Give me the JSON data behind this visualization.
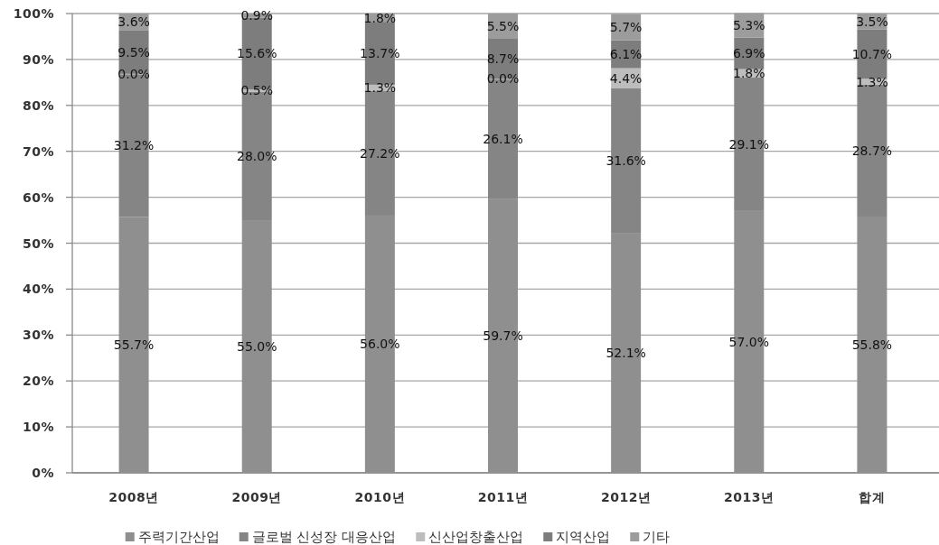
{
  "chart_data": {
    "type": "bar",
    "stacked": true,
    "categories": [
      "2008년",
      "2009년",
      "2010년",
      "2011년",
      "2012년",
      "2013년",
      "합계"
    ],
    "series": [
      {
        "name": "주력기간산업",
        "color": "#8f8f8f",
        "values": [
          55.7,
          55.0,
          56.0,
          59.7,
          52.1,
          57.0,
          55.8
        ],
        "value_labels": [
          "55.7%",
          "55.0%",
          "56.0%",
          "59.7%",
          "52.1%",
          "57.0%",
          "55.8%"
        ]
      },
      {
        "name": "글로벌 신성장 대응산업",
        "color": "#858585",
        "values": [
          31.2,
          28.0,
          27.2,
          26.1,
          31.6,
          29.1,
          28.7
        ],
        "value_labels": [
          "31.2%",
          "28.0%",
          "27.2%",
          "26.1%",
          "31.6%",
          "29.1%",
          "28.7%"
        ]
      },
      {
        "name": "신산업창출산업",
        "color": "#bdbdbd",
        "values": [
          0.0,
          0.5,
          1.3,
          0.0,
          4.4,
          1.8,
          1.3
        ],
        "value_labels": [
          "0.0%",
          "0.5%",
          "1.3%",
          "0.0%",
          "4.4%",
          "1.8%",
          "1.3%"
        ]
      },
      {
        "name": "지역산업",
        "color": "#7d7d7d",
        "values": [
          9.5,
          15.6,
          13.7,
          8.7,
          6.1,
          6.9,
          10.7
        ],
        "value_labels": [
          "9.5%",
          "15.6%",
          "13.7%",
          "8.7%",
          "6.1%",
          "6.9%",
          "10.7%"
        ]
      },
      {
        "name": "기타",
        "color": "#9c9c9c",
        "values": [
          3.6,
          0.9,
          1.8,
          5.5,
          5.7,
          5.3,
          3.5
        ],
        "value_labels": [
          "3.6%",
          "0.9%",
          "1.8%",
          "5.5%",
          "5.7%",
          "5.3%",
          "3.5%"
        ]
      }
    ],
    "ylim": [
      0,
      100
    ],
    "yticks": [
      {
        "value": 0,
        "label": "0%"
      },
      {
        "value": 10,
        "label": "10%"
      },
      {
        "value": 20,
        "label": "20%"
      },
      {
        "value": 30,
        "label": "30%"
      },
      {
        "value": 40,
        "label": "40%"
      },
      {
        "value": 50,
        "label": "50%"
      },
      {
        "value": 60,
        "label": "60%"
      },
      {
        "value": 70,
        "label": "70%"
      },
      {
        "value": 80,
        "label": "80%"
      },
      {
        "value": 90,
        "label": "90%"
      },
      {
        "value": 100,
        "label": "100%"
      }
    ],
    "grid": "y",
    "legend": "bottom"
  }
}
